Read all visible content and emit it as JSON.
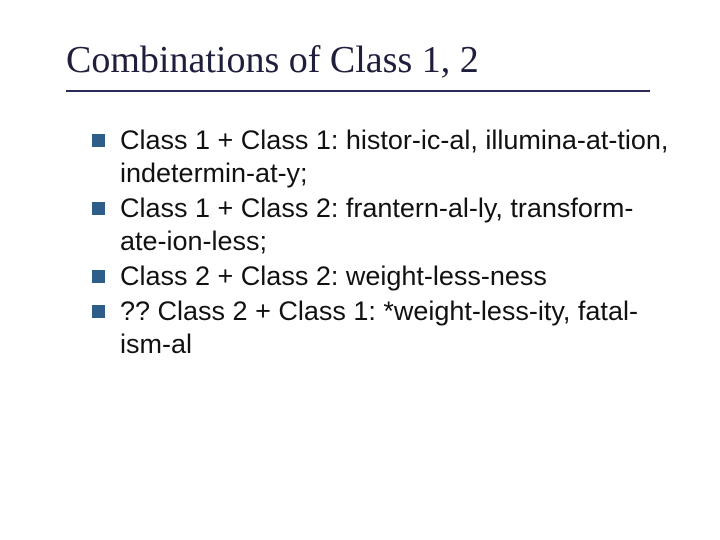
{
  "slide": {
    "title": "Combinations of Class 1, 2",
    "title_color": "#1f1f3d",
    "title_font": "Times New Roman",
    "title_fontsize": 38,
    "rule_color": "#2b2b5a",
    "bullet_color": "#2f5d8a",
    "bullet_size": 13,
    "body_fontsize": 27,
    "body_color": "#111111",
    "background_color": "#ffffff",
    "bullets": [
      "Class 1 + Class 1: histor-ic-al, illumina-at-tion, indetermin-at-y;",
      "Class 1 + Class 2: frantern-al-ly, transform-ate-ion-less;",
      "Class 2 + Class 2: weight-less-ness",
      "?? Class 2 + Class 1: *weight-less-ity, fatal-ism-al"
    ]
  }
}
